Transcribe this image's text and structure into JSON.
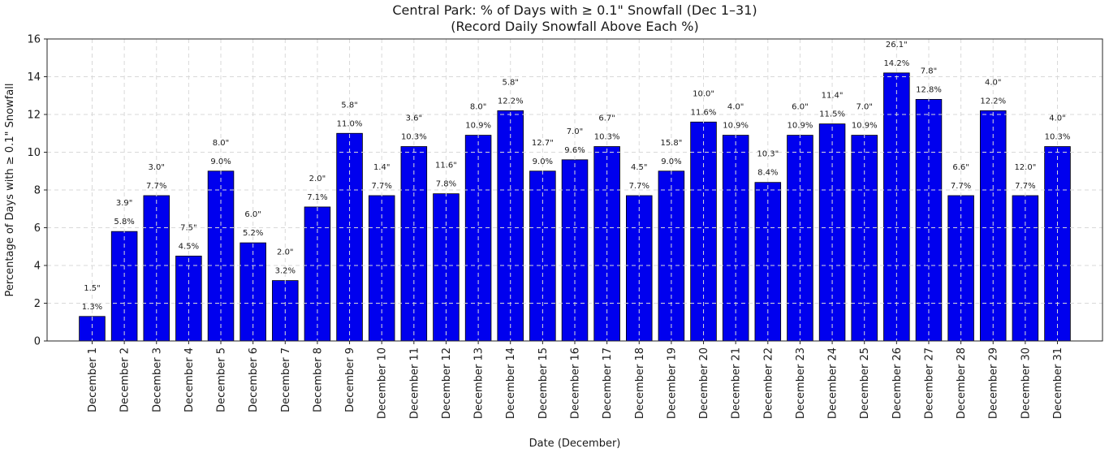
{
  "chart_data": {
    "type": "bar",
    "title": "Central Park: % of Days with ≥ 0.1\" Snowfall (Dec 1–31)",
    "subtitle": "(Record Daily Snowfall Above Each %)",
    "xlabel": "Date (December)",
    "ylabel": "Percentage of Days with ≥ 0.1\" Snowfall",
    "ylim": [
      0,
      16
    ],
    "yticks": [
      0,
      2,
      4,
      6,
      8,
      10,
      12,
      14,
      16
    ],
    "grid": "dashed",
    "legend": "none",
    "bar_color": "#0000ee",
    "bar_edge_color": "#000000",
    "categories": [
      "December 1",
      "December 2",
      "December 3",
      "December 4",
      "December 5",
      "December 6",
      "December 7",
      "December 8",
      "December 9",
      "December 10",
      "December 11",
      "December 12",
      "December 13",
      "December 14",
      "December 15",
      "December 16",
      "December 17",
      "December 18",
      "December 19",
      "December 20",
      "December 21",
      "December 22",
      "December 23",
      "December 24",
      "December 25",
      "December 26",
      "December 27",
      "December 28",
      "December 29",
      "December 30",
      "December 31"
    ],
    "values": [
      1.3,
      5.8,
      7.7,
      4.5,
      9.0,
      5.2,
      3.2,
      7.1,
      11.0,
      7.7,
      10.3,
      7.8,
      10.9,
      12.2,
      9.0,
      9.6,
      10.3,
      7.7,
      9.0,
      11.6,
      10.9,
      8.4,
      10.9,
      11.5,
      10.9,
      14.2,
      12.8,
      7.7,
      12.2,
      7.7,
      10.3
    ],
    "value_labels": [
      "1.3%",
      "5.8%",
      "7.7%",
      "4.5%",
      "9.0%",
      "5.2%",
      "3.2%",
      "7.1%",
      "11.0%",
      "7.7%",
      "10.3%",
      "7.8%",
      "10.9%",
      "12.2%",
      "9.0%",
      "9.6%",
      "10.3%",
      "7.7%",
      "9.0%",
      "11.6%",
      "10.9%",
      "8.4%",
      "10.9%",
      "11.5%",
      "10.9%",
      "14.2%",
      "12.8%",
      "7.7%",
      "12.2%",
      "7.7%",
      "10.3%"
    ],
    "record_labels": [
      "1.5\"",
      "3.9\"",
      "3.0\"",
      "7.5\"",
      "8.0\"",
      "6.0\"",
      "2.0\"",
      "2.0\"",
      "5.8\"",
      "1.4\"",
      "3.6\"",
      "11.6\"",
      "8.0\"",
      "5.8\"",
      "12.7\"",
      "7.0\"",
      "6.7\"",
      "4.5\"",
      "15.8\"",
      "10.0\"",
      "4.0\"",
      "10.3\"",
      "6.0\"",
      "11.4\"",
      "7.0\"",
      "26.1\"",
      "7.8\"",
      "6.6\"",
      "4.0\"",
      "12.0\"",
      "4.0\""
    ]
  }
}
